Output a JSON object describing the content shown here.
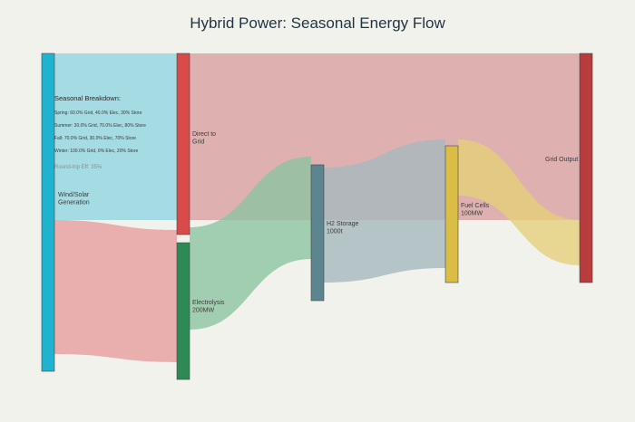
{
  "title": "Hybrid Power: Seasonal Energy Flow",
  "nodes": [
    {
      "id": "source",
      "lines": [
        "Wind/Solar",
        "Generation"
      ],
      "color": "#1fb3cf"
    },
    {
      "id": "grid_direct",
      "lines": [
        "Direct to",
        "Grid"
      ],
      "color": "#d94a4a"
    },
    {
      "id": "electrolysis",
      "lines": [
        "Electrolysis",
        "200MW"
      ],
      "color": "#2e8a55"
    },
    {
      "id": "h2_storage",
      "lines": [
        "H2 Storage",
        "1000t"
      ],
      "color": "#5c8590"
    },
    {
      "id": "fuel_cells",
      "lines": [
        "Fuel Cells",
        "100MW"
      ],
      "color": "#d9bd45"
    },
    {
      "id": "grid_output",
      "lines": [
        "Grid Output"
      ],
      "color": "#b83c3c"
    }
  ],
  "links": [
    {
      "from": "source",
      "to": "grid_direct",
      "color": "#8fd5df"
    },
    {
      "from": "source",
      "to": "electrolysis",
      "color": "#e79c9c"
    },
    {
      "from": "grid_direct",
      "to": "grid_output",
      "color": "#d99f9f"
    },
    {
      "from": "electrolysis",
      "to": "h2_storage",
      "color": "#8bc4a0"
    },
    {
      "from": "h2_storage",
      "to": "fuel_cells",
      "color": "#a4b9bd"
    },
    {
      "from": "fuel_cells",
      "to": "grid_output",
      "color": "#e5cf78"
    }
  ],
  "breakdown": {
    "title": "Seasonal Breakdown:",
    "lines": [
      "Spring: 60.0% Grid, 40.0% Elec, 30% Store",
      "Summer: 30.0% Grid, 70.0% Elec, 80% Store",
      "Fall: 70.0% Grid, 30.0% Elec, 70% Store",
      "Winter: 100.0% Grid, 0% Elec, 20% Store"
    ],
    "efficiency": "Round-trip Eff: 35%"
  }
}
